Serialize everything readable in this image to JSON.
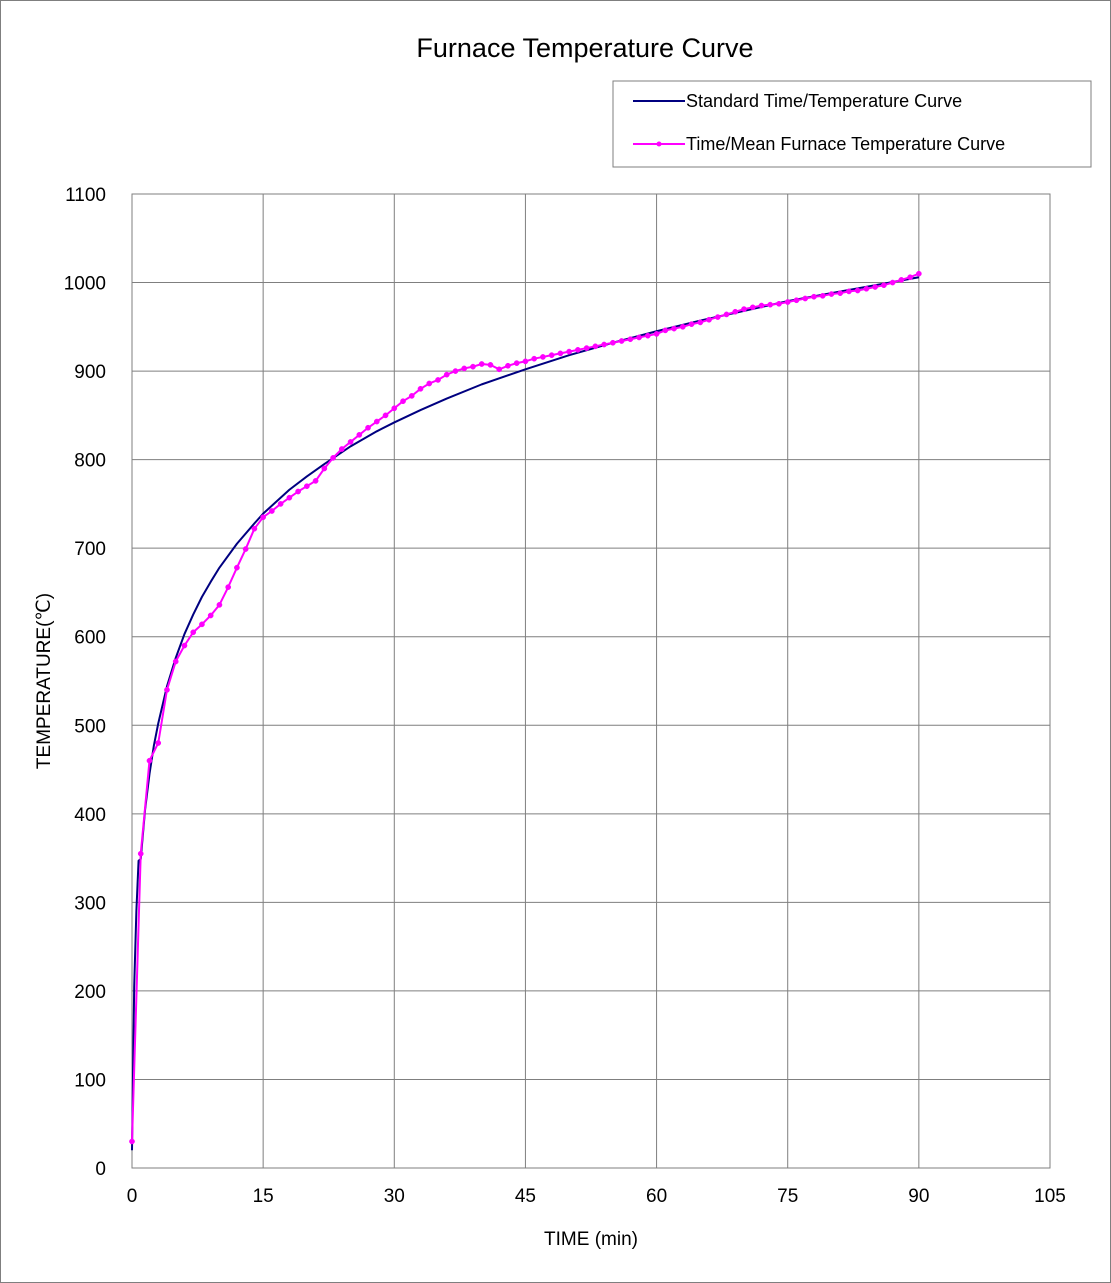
{
  "chart_data": {
    "type": "line",
    "title": "Furnace Temperature Curve",
    "xlabel": "TIME (min)",
    "ylabel": "TEMPERATURE(℃)",
    "xlim": [
      0,
      105
    ],
    "ylim": [
      0,
      1100
    ],
    "xticks": [
      0,
      15,
      30,
      45,
      60,
      75,
      90,
      105
    ],
    "yticks": [
      0,
      100,
      200,
      300,
      400,
      500,
      600,
      700,
      800,
      900,
      1000,
      1100
    ],
    "grid": true,
    "legend_position": "top-right",
    "series": [
      {
        "name": "Standard Time/Temperature Curve",
        "color": "#000080",
        "marker": false,
        "x": [
          0,
          0.25,
          0.5,
          0.75,
          1,
          1.5,
          2,
          2.5,
          3,
          4,
          5,
          6,
          7,
          8,
          9,
          10,
          12,
          14,
          15,
          18,
          20,
          22,
          25,
          28,
          30,
          33,
          36,
          40,
          45,
          50,
          55,
          60,
          65,
          70,
          75,
          80,
          85,
          90
        ],
        "y": [
          20,
          205,
          290,
          347,
          349,
          405,
          445,
          477,
          502,
          544,
          576,
          603,
          625,
          645,
          662,
          678,
          705,
          728,
          739,
          766,
          781,
          795,
          815,
          832,
          842,
          856,
          869,
          885,
          902,
          918,
          932,
          945,
          957,
          968,
          979,
          988,
          997,
          1006
        ]
      },
      {
        "name": "Time/Mean Furnace Temperature Curve",
        "color": "#ff00ff",
        "marker": true,
        "x": [
          0,
          1,
          2,
          3,
          4,
          5,
          6,
          7,
          8,
          9,
          10,
          11,
          12,
          13,
          14,
          15,
          16,
          17,
          18,
          19,
          20,
          21,
          22,
          23,
          24,
          25,
          26,
          27,
          28,
          29,
          30,
          31,
          32,
          33,
          34,
          35,
          36,
          37,
          38,
          39,
          40,
          41,
          42,
          43,
          44,
          45,
          46,
          47,
          48,
          49,
          50,
          51,
          52,
          53,
          54,
          55,
          56,
          57,
          58,
          59,
          60,
          61,
          62,
          63,
          64,
          65,
          66,
          67,
          68,
          69,
          70,
          71,
          72,
          73,
          74,
          75,
          76,
          77,
          78,
          79,
          80,
          81,
          82,
          83,
          84,
          85,
          86,
          87,
          88,
          89,
          90
        ],
        "y": [
          30,
          355,
          460,
          480,
          540,
          572,
          590,
          605,
          614,
          624,
          636,
          656,
          678,
          699,
          722,
          735,
          742,
          750,
          757,
          764,
          770,
          776,
          790,
          802,
          812,
          820,
          828,
          836,
          843,
          850,
          858,
          866,
          872,
          880,
          886,
          890,
          896,
          900,
          903,
          905,
          908,
          907,
          902,
          906,
          909,
          911,
          914,
          916,
          918,
          920,
          922,
          924,
          926,
          928,
          930,
          932,
          934,
          936,
          938,
          940,
          942,
          946,
          948,
          950,
          953,
          955,
          958,
          961,
          964,
          967,
          970,
          972,
          974,
          975,
          976,
          978,
          980,
          982,
          984,
          985,
          987,
          988,
          990,
          991,
          993,
          995,
          997,
          1000,
          1003,
          1006,
          1010
        ]
      }
    ]
  }
}
